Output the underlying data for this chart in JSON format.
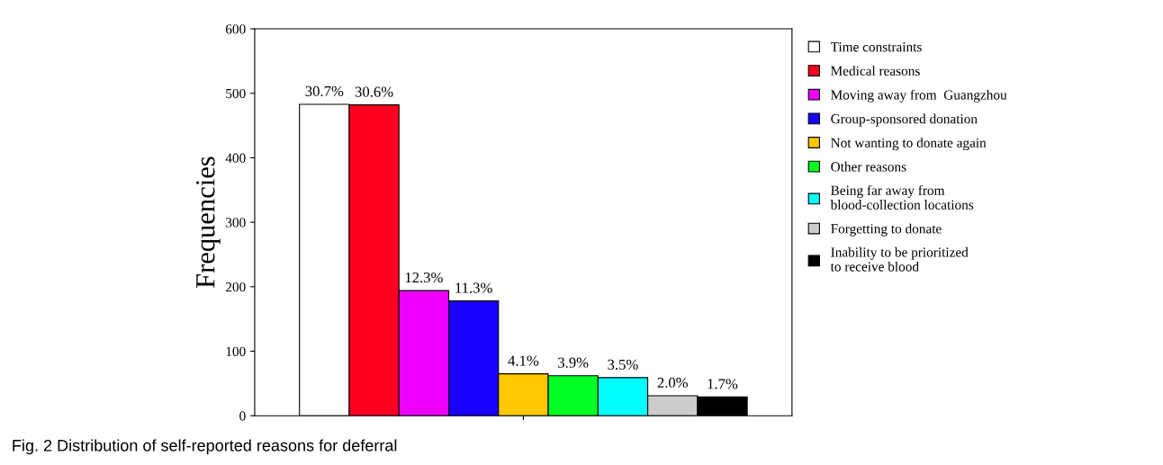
{
  "chart_data": {
    "type": "bar",
    "ylabel": "Frequencies",
    "categories": [
      null
    ],
    "ylim": [
      0,
      600
    ],
    "yticks": [
      0,
      100,
      200,
      300,
      400,
      500,
      600
    ],
    "legend": "top right",
    "grid": false,
    "series": [
      {
        "name": "Time constraints",
        "color": "#ffffff",
        "values": [
          483
        ]
      },
      {
        "name": "Medical reasons",
        "color": "#ff0022",
        "values": [
          482
        ]
      },
      {
        "name": "Moving away from  Guangzhou",
        "color": "#ee00ff",
        "values": [
          194
        ]
      },
      {
        "name": "Group-sponsored donation",
        "color": "#1a00ff",
        "values": [
          178
        ]
      },
      {
        "name": "Not wanting to donate again",
        "color": "#ffc800",
        "values": [
          65
        ]
      },
      {
        "name": "Other reasons",
        "color": "#00ff22",
        "values": [
          62
        ]
      },
      {
        "name": "Being far away from\nblood-collection locations",
        "color": "#00ffff",
        "values": [
          59
        ]
      },
      {
        "name": "Forgetting to donate",
        "color": "#cccccc",
        "values": [
          31
        ]
      },
      {
        "name": "Inability to be prioritized\nto receive blood",
        "color": "#000000",
        "values": [
          29
        ]
      }
    ],
    "annotations": [
      {
        "text": "30.7%",
        "y": 483
      },
      {
        "text": "30.6%",
        "y": 482
      },
      {
        "text": "12.3%",
        "y": 194
      },
      {
        "text": "11.3%",
        "y": 178
      },
      {
        "text": "4.1%",
        "y": 65
      },
      {
        "text": "3.9%",
        "y": 62
      },
      {
        "text": "3.5%",
        "y": 59
      },
      {
        "text": "2.0%",
        "y": 31
      },
      {
        "text": "1.7%",
        "y": 29
      },
      "Fig. 2 Distribution of self-reported reasons for deferral"
    ]
  }
}
